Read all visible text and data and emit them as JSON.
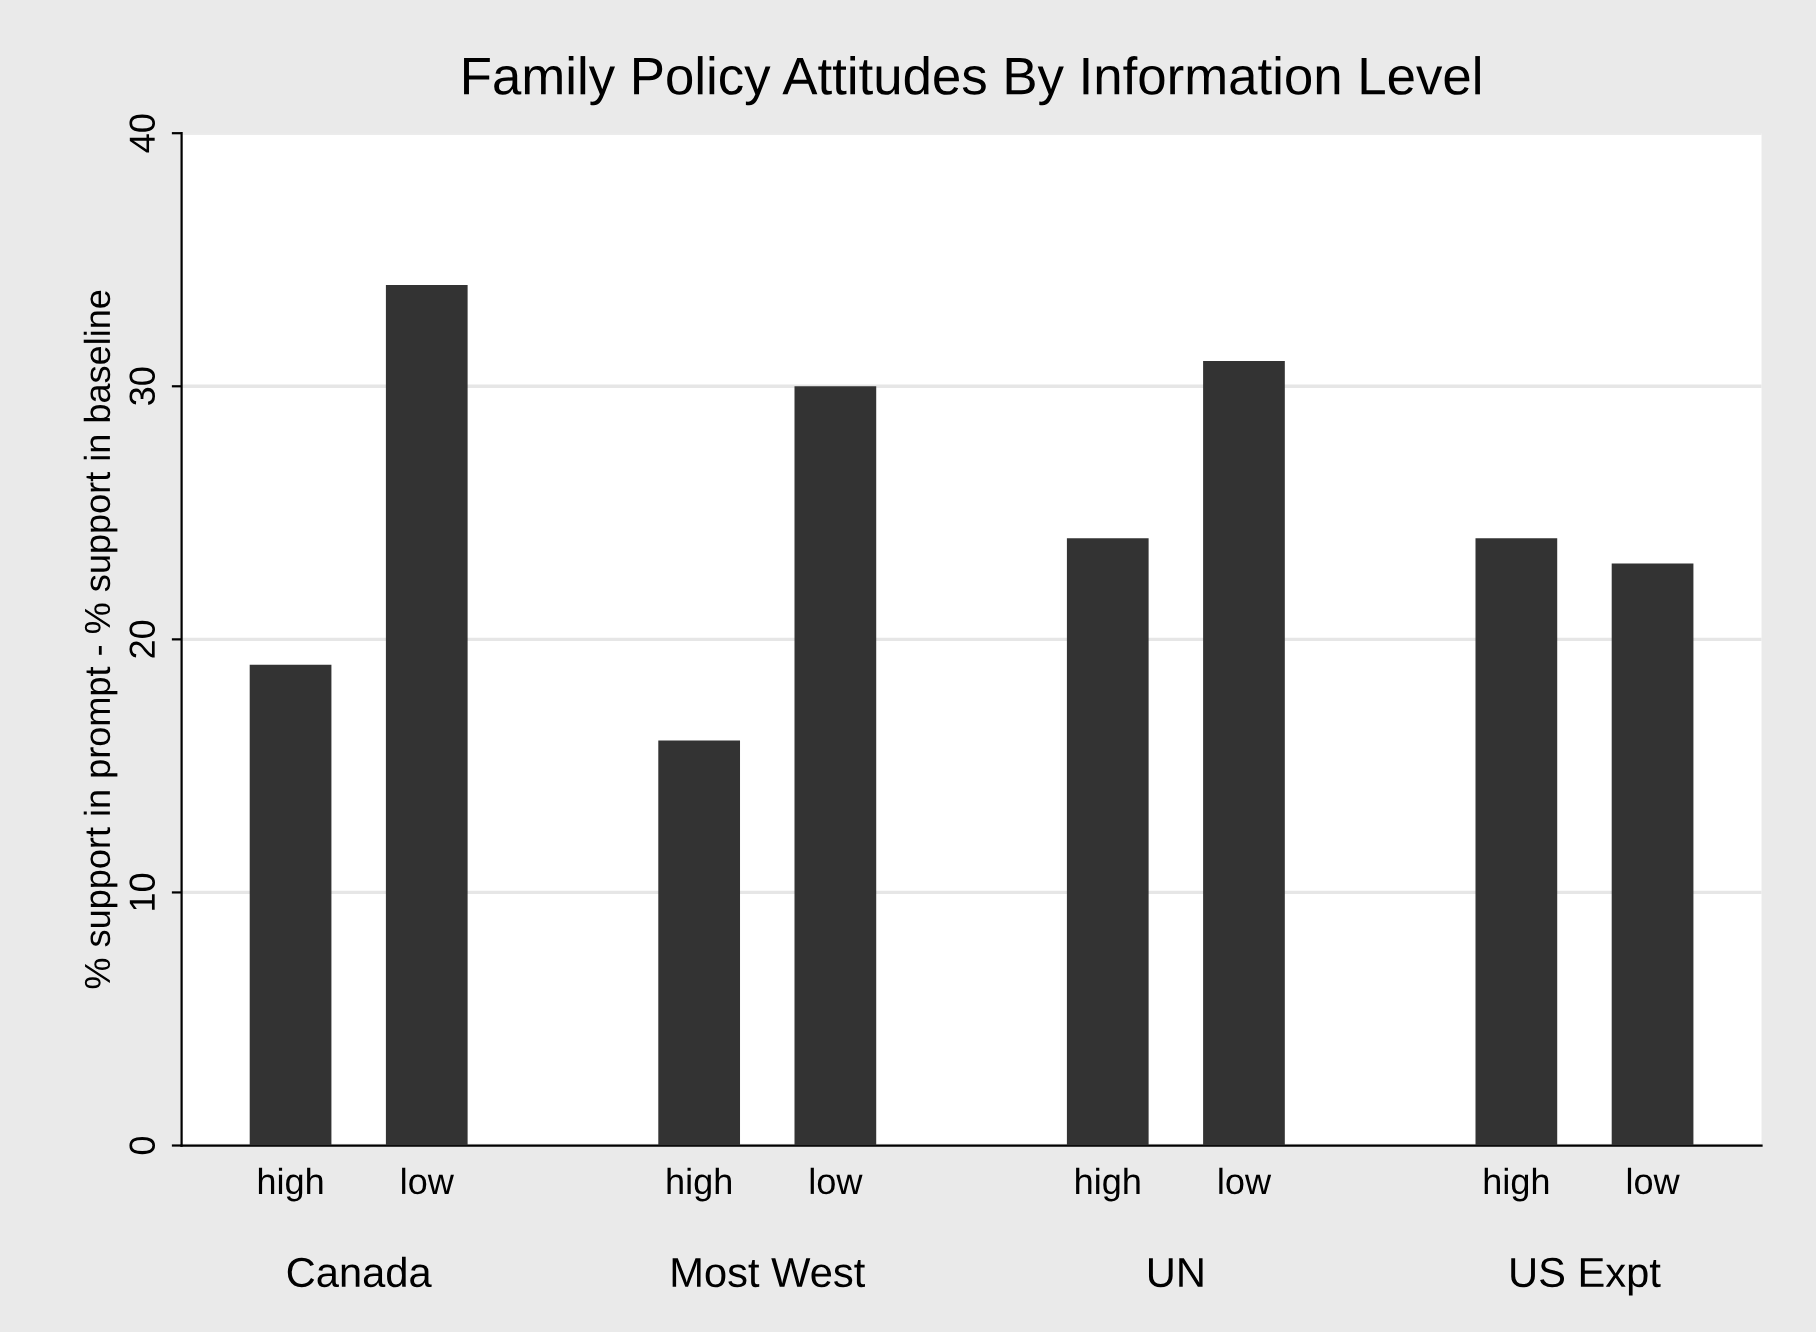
{
  "chart_data": {
    "type": "bar",
    "title": "Family Policy Attitudes By Information Level",
    "ylabel": "% support in prompt - % support in baseline",
    "categories": [
      "high",
      "low",
      "high",
      "low",
      "high",
      "low",
      "high",
      "low"
    ],
    "values": [
      19,
      34,
      16,
      30,
      24,
      31,
      24,
      23
    ],
    "color": "#333333",
    "ylim": [
      0,
      40
    ],
    "yticks": [
      0,
      10,
      20,
      30,
      40
    ],
    "grid": "y",
    "annotations": [
      "Canada",
      "Most West",
      "UN",
      "US Expt"
    ]
  }
}
